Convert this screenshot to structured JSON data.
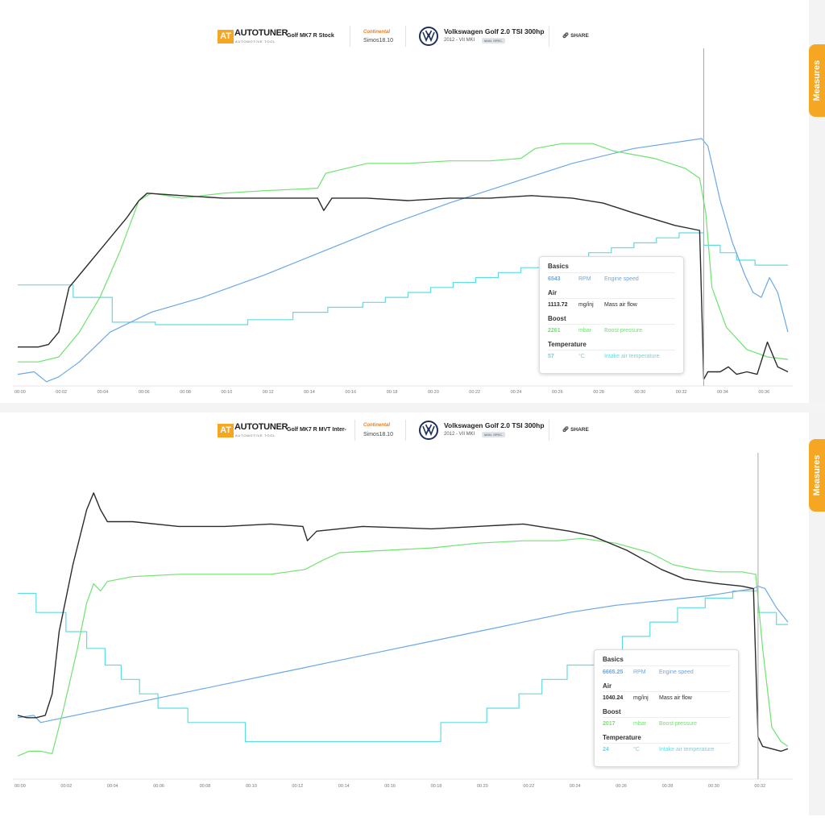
{
  "colors": {
    "rpm": "#6aa8e6",
    "air": "#2b2b2b",
    "boost": "#6ee36e",
    "temp": "#5fdbe2",
    "accent": "#f5a623",
    "cursor": "#aaaaaa"
  },
  "icons": {
    "logo": "autotuner-logo",
    "brand": "volkswagen-logo",
    "share": "link-icon"
  },
  "panels": [
    {
      "logo": {
        "initials": "AT",
        "word": "AUTOTUNER",
        "sub": "AUTOMOTIVE TOOL"
      },
      "vehicle_name": "Golf MK7 R Stock",
      "ecu": {
        "brand": "Continental",
        "model": "Simos18.10"
      },
      "car": {
        "title": "Volkswagen Golf 2.0 TSI 300hp",
        "sub": "2012 - VII MKI",
        "badge": "MAN. SPEC."
      },
      "share_label": "SHARE",
      "measures_label": "Measures",
      "legend": {
        "basics": "Basics",
        "rpm_value": "6543",
        "rpm_unit": "RPM",
        "rpm_desc": "Engine speed",
        "air": "Air",
        "air_value": "1113.72",
        "air_unit": "mg/inj",
        "air_desc": "Mass air flow",
        "boost": "Boost",
        "boost_value": "2261",
        "boost_unit": "mbar",
        "boost_desc": "Boost pressure",
        "temperature": "Temperature",
        "temp_value": "57",
        "temp_unit": "°C",
        "temp_desc": "Intake air temperature"
      }
    },
    {
      "logo": {
        "initials": "AT",
        "word": "AUTOTUNER",
        "sub": "AUTOMOTIVE TOOL"
      },
      "vehicle_name": "Golf MK7 R MVT Inter-",
      "ecu": {
        "brand": "Continental",
        "model": "Simos18.10"
      },
      "car": {
        "title": "Volkswagen Golf 2.0 TSI 300hp",
        "sub": "2012 - VII MKI",
        "badge": "MAN. SPEC."
      },
      "share_label": "SHARE",
      "measures_label": "Measures",
      "legend": {
        "basics": "Basics",
        "rpm_value": "6665.25",
        "rpm_unit": "RPM",
        "rpm_desc": "Engine speed",
        "air": "Air",
        "air_value": "1040.24",
        "air_unit": "mg/inj",
        "air_desc": "Mass air flow",
        "boost": "Boost",
        "boost_value": "2017",
        "boost_unit": "mbar",
        "boost_desc": "Boost pressure",
        "temperature": "Temperature",
        "temp_value": "24",
        "temp_unit": "°C",
        "temp_desc": "Intake air temperature"
      }
    }
  ],
  "chart_data": [
    {
      "type": "line",
      "x_ticks": [
        "00:00",
        "00:02",
        "00:04",
        "00:06",
        "00:08",
        "00:10",
        "00:12",
        "00:14",
        "00:16",
        "00:18",
        "00:20",
        "00:22",
        "00:24",
        "00:26",
        "00:28",
        "00:30",
        "00:32",
        "00:34",
        "00:36"
      ],
      "xlim": [
        0,
        37.5
      ],
      "cursor_x": 33.4,
      "series": [
        {
          "key": "temp",
          "color": "#5fdbe2",
          "step": true,
          "x": [
            0,
            2.7,
            2.7,
            4.6,
            4.6,
            6.7,
            6.7,
            11.2,
            11.2,
            13.4,
            13.4,
            15.1,
            15.1,
            16.8,
            16.8,
            17.9,
            17.9,
            19.0,
            19.0,
            20.1,
            20.1,
            21.2,
            21.2,
            22.3,
            22.3,
            23.4,
            23.4,
            24.5,
            24.5,
            25.6,
            25.6,
            26.7,
            26.7,
            27.8,
            27.8,
            28.9,
            28.9,
            30.0,
            30.0,
            31.1,
            31.1,
            32.2,
            32.2,
            33.4,
            33.4,
            34.2,
            34.2,
            35.0,
            35.0,
            35.9,
            35.9,
            37.0,
            37.0,
            37.5
          ],
          "y": [
            41,
            41,
            36,
            36,
            26,
            26,
            25,
            25,
            27,
            27,
            30,
            30,
            32,
            32,
            34,
            34,
            36,
            36,
            38,
            38,
            40,
            40,
            42,
            42,
            44,
            44,
            46,
            46,
            48,
            48,
            50,
            50,
            52,
            52,
            54,
            54,
            56,
            56,
            58,
            58,
            60,
            60,
            62,
            62,
            57,
            57,
            54,
            54,
            51,
            51,
            49,
            49,
            49,
            49
          ]
        },
        {
          "key": "rpm",
          "color": "#6aa8e6",
          "x": [
            0,
            0.8,
            1.4,
            2.0,
            3.0,
            4.5,
            6.5,
            9,
            12,
            15,
            18,
            21,
            24,
            27,
            30,
            33.3,
            33.6,
            34.2,
            34.8,
            35.4,
            35.8,
            36.2,
            36.6,
            37.0,
            37.5
          ],
          "y": [
            5,
            6,
            2,
            4,
            10,
            22,
            30,
            36,
            45,
            55,
            65,
            74,
            82,
            90,
            96,
            100,
            97,
            75,
            58,
            45,
            38,
            36,
            44,
            38,
            22
          ]
        },
        {
          "key": "boost",
          "color": "#6ee36e",
          "x": [
            0,
            1.0,
            2.0,
            3.0,
            4.0,
            5.0,
            5.9,
            6.5,
            8,
            10,
            12,
            14.6,
            15.0,
            17,
            19,
            21,
            23,
            24.5,
            25.2,
            26.5,
            28,
            29,
            31,
            32.5,
            33.2,
            33.5,
            33.8,
            34.5,
            35.5,
            36.5,
            37.5
          ],
          "y": [
            10,
            10,
            12,
            22,
            36,
            55,
            75,
            78,
            76,
            78,
            79,
            80,
            86,
            90,
            90,
            91,
            91,
            92,
            96,
            98,
            98,
            95,
            92,
            88,
            84,
            70,
            40,
            24,
            15,
            12,
            11
          ]
        },
        {
          "key": "air",
          "color": "#2b2b2b",
          "x": [
            0,
            1.0,
            1.5,
            2.0,
            2.5,
            3.5,
            4.5,
            5.3,
            5.9,
            6.3,
            8,
            10,
            12,
            14.6,
            14.9,
            15.3,
            17,
            19,
            21,
            23,
            25,
            27,
            28.5,
            30,
            32,
            33.2,
            33.4,
            33.6,
            34.2,
            34.6,
            35.0,
            35.5,
            36.0,
            36.5,
            37.0,
            37.5
          ],
          "y": [
            16,
            16,
            17,
            22,
            40,
            50,
            60,
            68,
            75,
            78,
            77,
            76,
            76,
            76,
            71,
            76,
            76,
            75,
            76,
            76,
            77,
            76,
            74,
            70,
            65,
            63,
            3,
            6,
            6,
            8,
            5,
            6,
            5,
            18,
            8,
            6
          ]
        }
      ]
    },
    {
      "type": "line",
      "x_ticks": [
        "00:00",
        "00:02",
        "00:04",
        "00:06",
        "00:08",
        "00:10",
        "00:12",
        "00:14",
        "00:16",
        "00:18",
        "00:20",
        "00:22",
        "00:24",
        "00:26",
        "00:28",
        "00:30",
        "00:32"
      ],
      "xlim": [
        0,
        33.5
      ],
      "cursor_x": 32.2,
      "series": [
        {
          "key": "temp",
          "color": "#5fdbe2",
          "step": true,
          "x": [
            0,
            0.8,
            0.8,
            2.1,
            2.1,
            3.0,
            3.0,
            3.8,
            3.8,
            4.5,
            4.5,
            5.3,
            5.3,
            6.1,
            6.1,
            7.4,
            7.4,
            9.9,
            9.9,
            18.4,
            18.4,
            20.4,
            20.4,
            21.8,
            21.8,
            22.8,
            22.8,
            23.9,
            23.9,
            25.1,
            25.1,
            26.3,
            26.3,
            27.5,
            27.5,
            28.7,
            28.7,
            29.9,
            29.9,
            31.1,
            31.1,
            32.2,
            32.2,
            33.0,
            33.0,
            33.5
          ],
          "y": [
            78,
            78,
            70,
            70,
            62,
            62,
            55,
            55,
            48,
            48,
            42,
            42,
            36,
            36,
            30,
            30,
            24,
            24,
            16,
            16,
            24,
            24,
            30,
            30,
            36,
            36,
            42,
            42,
            48,
            48,
            54,
            54,
            60,
            60,
            66,
            66,
            72,
            72,
            76,
            76,
            79,
            79,
            70,
            70,
            65,
            65
          ]
        },
        {
          "key": "rpm",
          "color": "#6aa8e6",
          "x": [
            0,
            0.7,
            1.0,
            2.0,
            4.0,
            6.0,
            8,
            10,
            12,
            14,
            16,
            18,
            20,
            22,
            24,
            26,
            28,
            30,
            32,
            32.2,
            32.5,
            33.0,
            33.5
          ],
          "y": [
            26,
            27,
            24,
            26,
            30,
            34,
            38,
            42,
            46,
            50,
            54,
            58,
            62,
            66,
            70,
            73,
            75,
            77,
            80,
            81,
            80,
            72,
            66
          ]
        },
        {
          "key": "boost",
          "color": "#6ee36e",
          "x": [
            0,
            0.5,
            1.0,
            1.5,
            2.0,
            2.6,
            3.0,
            3.3,
            3.6,
            3.9,
            5,
            7,
            9,
            11,
            12.5,
            13.3,
            14,
            16,
            18,
            20,
            22,
            23.5,
            24.5,
            26,
            27.5,
            28.5,
            29.5,
            30.5,
            31.5,
            32.1,
            32.4,
            32.8,
            33.2,
            33.5
          ],
          "y": [
            10,
            12,
            12,
            11,
            30,
            55,
            74,
            82,
            79,
            83,
            85,
            86,
            86,
            86,
            88,
            92,
            95,
            96,
            97,
            99,
            100,
            100,
            101,
            99,
            95,
            90,
            88,
            87,
            87,
            86,
            55,
            22,
            16,
            14
          ]
        },
        {
          "key": "air",
          "color": "#2b2b2b",
          "x": [
            0,
            0.4,
            0.8,
            1.2,
            1.5,
            1.8,
            2.4,
            3.0,
            3.3,
            3.6,
            3.9,
            5,
            7,
            9,
            11,
            12.4,
            12.6,
            13.0,
            15,
            18,
            20,
            22,
            24,
            25,
            26.5,
            28,
            29,
            30.5,
            31.5,
            32.0,
            32.2,
            32.4,
            32.8,
            33.2,
            33.5
          ],
          "y": [
            27,
            26,
            26,
            27,
            36,
            62,
            90,
            113,
            120,
            113,
            108,
            108,
            106,
            106,
            107,
            106,
            100,
            104,
            106,
            105,
            106,
            107,
            104,
            102,
            96,
            88,
            84,
            82,
            81,
            80,
            18,
            14,
            13,
            12,
            13
          ]
        }
      ]
    }
  ]
}
